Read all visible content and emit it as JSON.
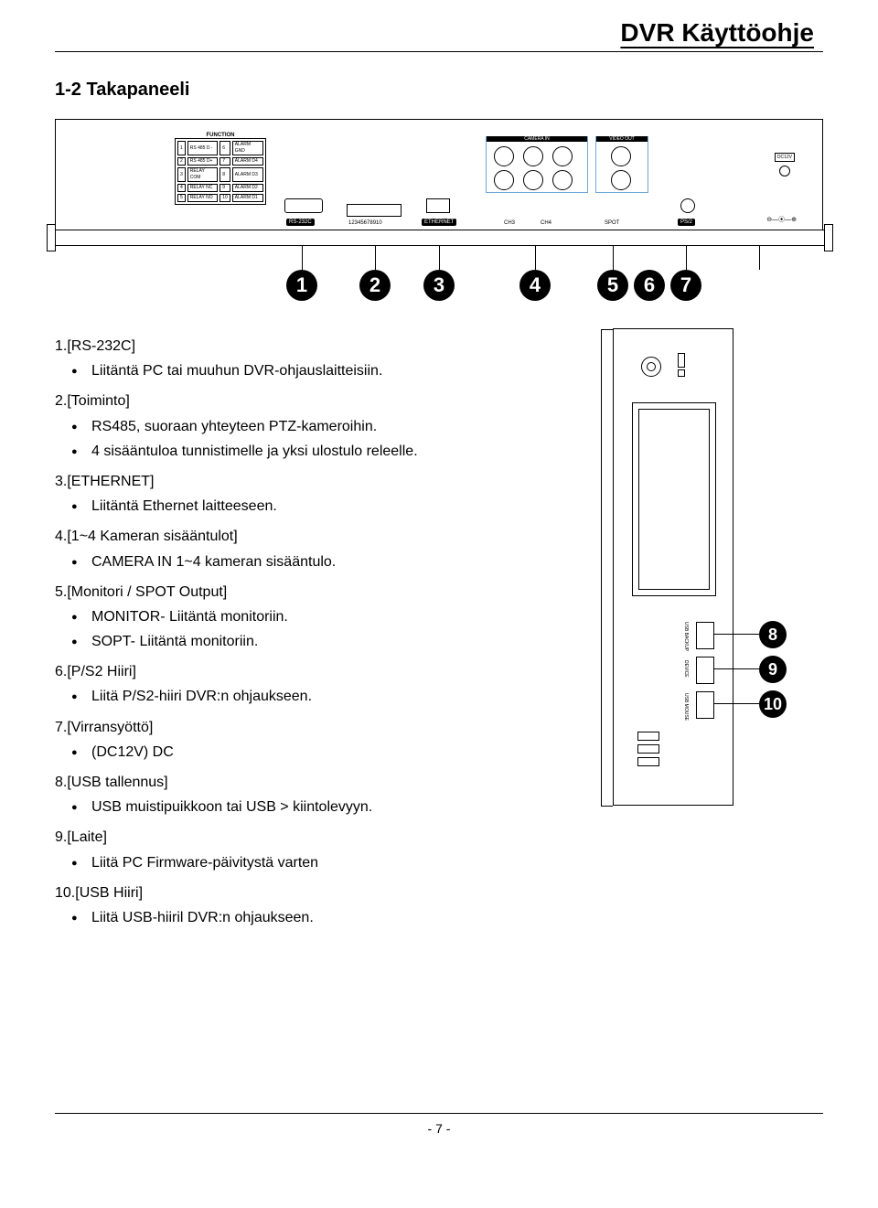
{
  "header": {
    "title": "DVR Käyttöohje"
  },
  "section_title": "1-2 Takapaneeli",
  "top_diagram": {
    "function_label": "FUNCTION",
    "function_rows": [
      [
        "1",
        "RS 485 D -",
        "6",
        "ALARM GND"
      ],
      [
        "2",
        "RS 485 D+",
        "7",
        "ALARM D4"
      ],
      [
        "3",
        "RELAY COM",
        "8",
        "ALARM D3"
      ],
      [
        "4",
        "RELAY NC",
        "9",
        "ALARM D2"
      ],
      [
        "5",
        "RELAY NO",
        "10",
        "ALARM D1"
      ]
    ],
    "camera_in": "CAMERA IN",
    "video_out": "VIDEO OUT",
    "port_rs232c": "RS-232C",
    "port_pins": "12345678910",
    "port_ethernet": "ETHERNET",
    "ch3": "CH3",
    "ch4": "CH4",
    "spot": "SPOT",
    "ps2": "PS/2",
    "dc12v": "DC12V",
    "numbers": [
      "1",
      "2",
      "3",
      "4",
      "5",
      "6",
      "7"
    ]
  },
  "items": [
    {
      "head": "1.[RS-232C]",
      "bullets": [
        "Liitäntä PC tai muuhun DVR-ohjauslaitteisiin."
      ]
    },
    {
      "head": "2.[Toiminto]",
      "bullets": [
        "RS485, suoraan yhteyteen PTZ-kameroihin.",
        "4 sisääntuloa tunnistimelle ja yksi ulostulo releelle."
      ]
    },
    {
      "head": "3.[ETHERNET]",
      "bullets": [
        "Liitäntä Ethernet laitteeseen."
      ]
    },
    {
      "head": "4.[1~4 Kameran sisääntulot]",
      "bullets": [
        "CAMERA IN 1~4 kameran sisääntulo."
      ]
    },
    {
      "head": "5.[Monitori / SPOT Output]",
      "bullets": [
        "MONITOR- Liitäntä monitoriin.",
        "SOPT- Liitäntä monitoriin."
      ]
    },
    {
      "head": "6.[P/S2 Hiiri]",
      "bullets": [
        "Liitä P/S2-hiiri DVR:n ohjaukseen."
      ]
    },
    {
      "head": "7.[Virransyöttö]",
      "bullets": [
        "(DC12V) DC"
      ]
    },
    {
      "head": "8.[USB tallennus]",
      "bullets": [
        "USB muistipuikkoon tai USB > kiintolevyyn."
      ]
    },
    {
      "head": "9.[Laite]",
      "bullets": [
        "Liitä PC Firmware-päivitystä varten"
      ]
    },
    {
      "head": "10.[USB Hiiri]",
      "bullets": [
        "Liitä USB-hiiril DVR:n ohjaukseen."
      ]
    }
  ],
  "side_numbers": [
    "8",
    "9",
    "10"
  ],
  "footer": {
    "page": "- 7 -"
  },
  "colors": {
    "highlight_box": "#6da8d8",
    "text": "#000000",
    "bg": "#ffffff"
  }
}
